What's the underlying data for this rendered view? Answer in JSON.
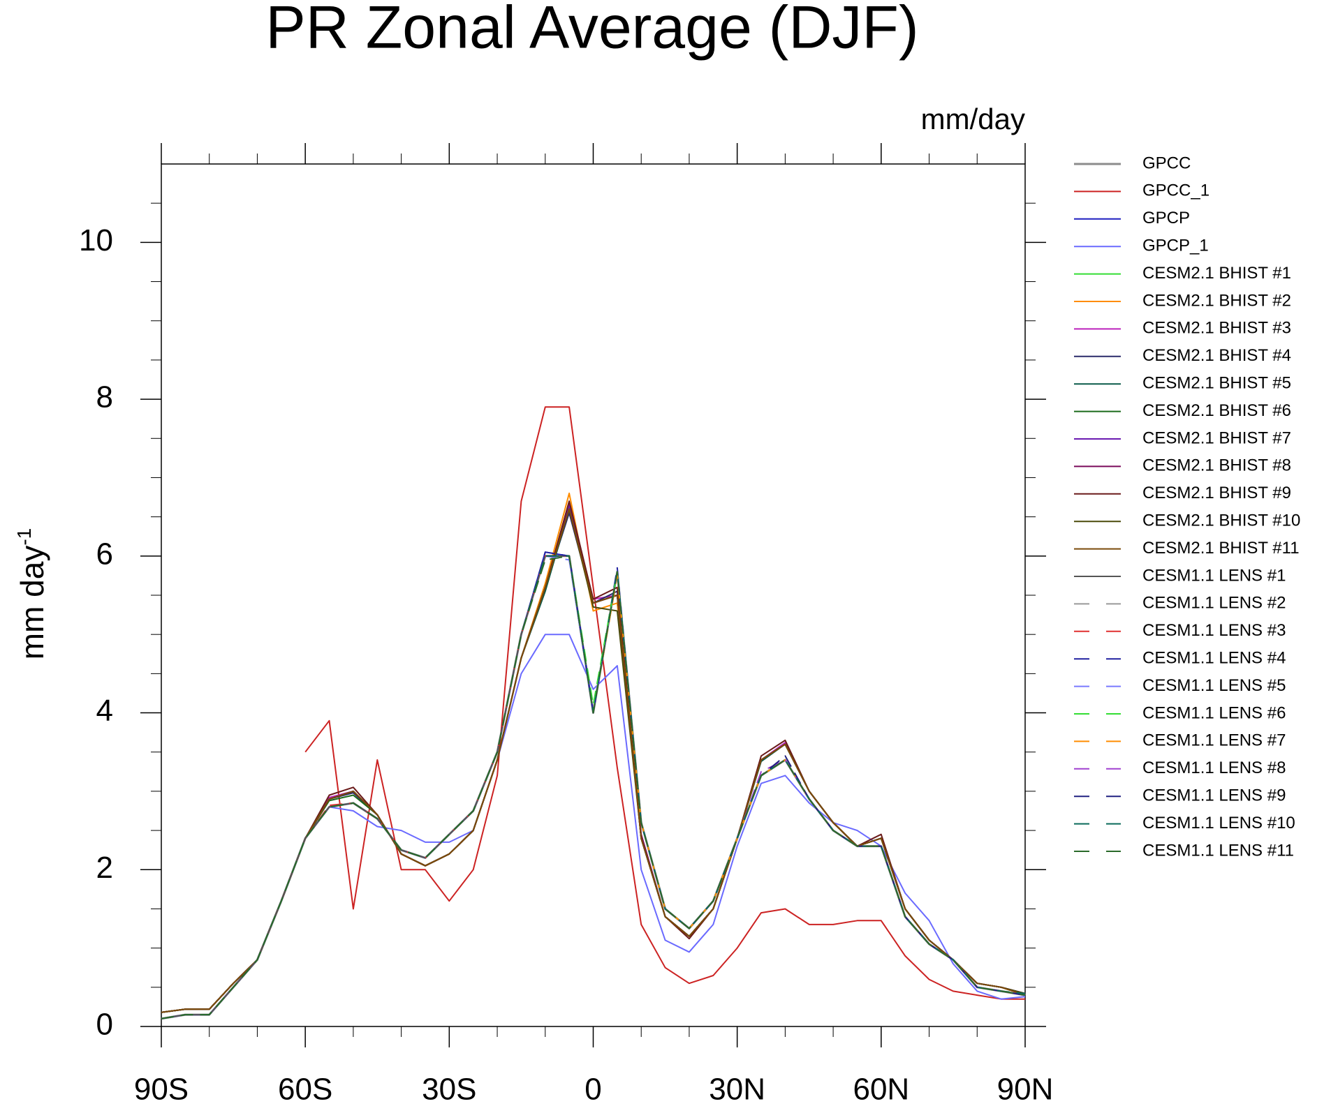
{
  "chart_data": {
    "type": "line",
    "title": "PR Zonal Average (DJF)",
    "units": "mm/day",
    "ylabel": "mm day",
    "ylabel_exponent": "-1",
    "x": [
      -90,
      -85,
      -80,
      -75,
      -70,
      -65,
      -60,
      -55,
      -50,
      -45,
      -40,
      -35,
      -30,
      -25,
      -20,
      -15,
      -10,
      -5,
      0,
      5,
      10,
      15,
      20,
      25,
      30,
      35,
      40,
      45,
      50,
      55,
      60,
      65,
      70,
      75,
      80,
      85,
      90
    ],
    "xlim": [
      -90,
      90
    ],
    "xticks": [
      {
        "value": -90,
        "label": "90S"
      },
      {
        "value": -60,
        "label": "60S"
      },
      {
        "value": -30,
        "label": "30S"
      },
      0,
      {
        "value": 30,
        "label": "30N"
      },
      {
        "value": 60,
        "label": "60N"
      },
      {
        "value": 90,
        "label": "90N"
      }
    ],
    "xminorticks": [
      -80,
      -70,
      -50,
      -40,
      -20,
      -10,
      10,
      20,
      40,
      50,
      70,
      80
    ],
    "ylim": [
      0,
      11
    ],
    "yticks": [
      0,
      2,
      4,
      6,
      8,
      10
    ],
    "yminorticks": [
      0.5,
      1,
      1.5,
      2.5,
      3,
      3.5,
      4.5,
      5,
      5.5,
      6.5,
      7,
      7.5,
      8.5,
      9,
      9.5,
      10.5
    ],
    "series": [
      {
        "name": "GPCC",
        "color": "#8c8c8c",
        "width": 3,
        "values": [
          0.1,
          0.15,
          0.15,
          0.5,
          0.85,
          1.6,
          2.4,
          2.8,
          2.85,
          2.65,
          2.25,
          2.15,
          2.45,
          2.75,
          3.5,
          5.0,
          6.0,
          6.0,
          4.0,
          5.8,
          2.6,
          1.5,
          1.25,
          1.6,
          2.4,
          3.2,
          3.4,
          2.9,
          2.5,
          2.3,
          2.3,
          1.4,
          1.05,
          0.85,
          0.5,
          0.45,
          0.4
        ]
      },
      {
        "name": "GPCC_1",
        "color": "#cc2222",
        "values": [
          null,
          null,
          null,
          null,
          null,
          null,
          3.5,
          3.9,
          1.5,
          3.4,
          2.0,
          2.0,
          1.6,
          2.0,
          3.2,
          6.7,
          7.9,
          7.9,
          5.6,
          3.3,
          1.3,
          0.75,
          0.55,
          0.65,
          1.0,
          1.45,
          1.5,
          1.3,
          1.3,
          1.35,
          1.35,
          0.9,
          0.6,
          0.45,
          0.4,
          0.35,
          0.35
        ]
      },
      {
        "name": "GPCP",
        "color": "#1f1fbf",
        "values": [
          0.1,
          0.15,
          0.15,
          0.5,
          0.85,
          1.6,
          2.4,
          2.8,
          2.85,
          2.65,
          2.25,
          2.15,
          2.45,
          2.75,
          3.5,
          5.0,
          6.05,
          6.0,
          4.0,
          5.8,
          2.6,
          1.5,
          1.25,
          1.6,
          2.4,
          3.2,
          3.4,
          2.9,
          2.5,
          2.3,
          2.3,
          1.4,
          1.05,
          0.85,
          0.5,
          0.45,
          0.4
        ]
      },
      {
        "name": "GPCP_1",
        "color": "#6a6aff",
        "values": [
          0.1,
          0.15,
          0.15,
          0.5,
          0.85,
          1.6,
          2.4,
          2.8,
          2.75,
          2.55,
          2.5,
          2.35,
          2.35,
          2.5,
          3.4,
          4.5,
          5.0,
          5.0,
          4.3,
          4.6,
          2.0,
          1.1,
          0.95,
          1.3,
          2.3,
          3.1,
          3.2,
          2.85,
          2.6,
          2.5,
          2.3,
          1.7,
          1.35,
          0.8,
          0.45,
          0.35,
          0.38
        ]
      },
      {
        "name": "CESM2.1 BHIST #1",
        "color": "#33dd33",
        "values": [
          0.18,
          0.22,
          0.22,
          0.55,
          0.85,
          1.6,
          2.4,
          2.9,
          3.0,
          2.7,
          2.2,
          2.05,
          2.2,
          2.5,
          3.4,
          4.7,
          5.6,
          6.6,
          5.4,
          5.5,
          2.4,
          1.4,
          1.15,
          1.5,
          2.4,
          3.4,
          3.6,
          3.0,
          2.6,
          2.3,
          2.4,
          1.5,
          1.1,
          0.85,
          0.55,
          0.5,
          0.42
        ]
      },
      {
        "name": "CESM2.1 BHIST #2",
        "color": "#ff8c00",
        "values": [
          0.18,
          0.22,
          0.22,
          0.55,
          0.85,
          1.6,
          2.4,
          2.9,
          3.0,
          2.7,
          2.2,
          2.05,
          2.2,
          2.5,
          3.4,
          4.7,
          5.65,
          6.8,
          5.3,
          5.4,
          2.4,
          1.4,
          1.15,
          1.5,
          2.4,
          3.4,
          3.6,
          3.0,
          2.6,
          2.3,
          2.4,
          1.5,
          1.1,
          0.85,
          0.55,
          0.5,
          0.4
        ]
      },
      {
        "name": "CESM2.1 BHIST #3",
        "color": "#bb22bb",
        "values": [
          0.18,
          0.22,
          0.22,
          0.55,
          0.85,
          1.6,
          2.4,
          2.92,
          3.0,
          2.7,
          2.2,
          2.05,
          2.2,
          2.5,
          3.4,
          4.7,
          5.6,
          6.6,
          5.45,
          5.5,
          2.4,
          1.4,
          1.15,
          1.5,
          2.4,
          3.4,
          3.62,
          3.0,
          2.6,
          2.3,
          2.4,
          1.5,
          1.1,
          0.85,
          0.55,
          0.5,
          0.42
        ]
      },
      {
        "name": "CESM2.1 BHIST #4",
        "color": "#2a2a6a",
        "values": [
          0.18,
          0.22,
          0.22,
          0.55,
          0.85,
          1.6,
          2.4,
          2.9,
          2.98,
          2.7,
          2.2,
          2.05,
          2.2,
          2.5,
          3.4,
          4.7,
          5.6,
          6.55,
          5.4,
          5.55,
          2.4,
          1.4,
          1.15,
          1.5,
          2.4,
          3.4,
          3.6,
          3.0,
          2.6,
          2.3,
          2.4,
          1.5,
          1.1,
          0.85,
          0.55,
          0.5,
          0.42
        ]
      },
      {
        "name": "CESM2.1 BHIST #5",
        "color": "#0a5a4a",
        "values": [
          0.18,
          0.22,
          0.22,
          0.55,
          0.85,
          1.6,
          2.4,
          2.9,
          3.0,
          2.7,
          2.2,
          2.05,
          2.2,
          2.5,
          3.4,
          4.7,
          5.55,
          6.6,
          5.4,
          5.5,
          2.4,
          1.4,
          1.15,
          1.5,
          2.4,
          3.38,
          3.6,
          3.0,
          2.6,
          2.3,
          2.4,
          1.5,
          1.1,
          0.85,
          0.55,
          0.5,
          0.42
        ]
      },
      {
        "name": "CESM2.1 BHIST #6",
        "color": "#1a6a1a",
        "values": [
          0.18,
          0.22,
          0.22,
          0.55,
          0.85,
          1.6,
          2.4,
          2.88,
          2.95,
          2.7,
          2.2,
          2.05,
          2.2,
          2.5,
          3.4,
          4.7,
          5.6,
          6.6,
          5.4,
          5.5,
          2.4,
          1.4,
          1.15,
          1.5,
          2.4,
          3.4,
          3.6,
          3.0,
          2.6,
          2.3,
          2.4,
          1.5,
          1.1,
          0.85,
          0.55,
          0.5,
          0.42
        ]
      },
      {
        "name": "CESM2.1 BHIST #7",
        "color": "#6a1ab0",
        "values": [
          0.18,
          0.22,
          0.22,
          0.55,
          0.85,
          1.6,
          2.4,
          2.9,
          3.0,
          2.7,
          2.2,
          2.05,
          2.2,
          2.5,
          3.4,
          4.7,
          5.6,
          6.65,
          5.4,
          5.5,
          2.4,
          1.4,
          1.15,
          1.5,
          2.4,
          3.4,
          3.6,
          3.0,
          2.6,
          2.3,
          2.4,
          1.5,
          1.1,
          0.85,
          0.55,
          0.5,
          0.42
        ]
      },
      {
        "name": "CESM2.1 BHIST #8",
        "color": "#7a0a5a",
        "values": [
          0.18,
          0.22,
          0.22,
          0.55,
          0.85,
          1.6,
          2.4,
          2.9,
          3.0,
          2.7,
          2.2,
          2.05,
          2.2,
          2.5,
          3.4,
          4.7,
          5.6,
          6.6,
          5.4,
          5.5,
          2.45,
          1.4,
          1.15,
          1.5,
          2.4,
          3.4,
          3.6,
          3.0,
          2.6,
          2.3,
          2.4,
          1.5,
          1.1,
          0.85,
          0.55,
          0.5,
          0.42
        ]
      },
      {
        "name": "CESM2.1 BHIST #9",
        "color": "#6a1a1a",
        "values": [
          0.18,
          0.22,
          0.22,
          0.55,
          0.85,
          1.6,
          2.4,
          2.95,
          3.05,
          2.7,
          2.2,
          2.05,
          2.2,
          2.5,
          3.4,
          4.7,
          5.6,
          6.7,
          5.45,
          5.6,
          2.4,
          1.4,
          1.12,
          1.5,
          2.4,
          3.45,
          3.65,
          3.0,
          2.6,
          2.3,
          2.45,
          1.5,
          1.1,
          0.85,
          0.55,
          0.5,
          0.42
        ]
      },
      {
        "name": "CESM2.1 BHIST #10",
        "color": "#4a4a0a",
        "values": [
          0.18,
          0.22,
          0.22,
          0.55,
          0.85,
          1.6,
          2.4,
          2.9,
          3.0,
          2.7,
          2.2,
          2.05,
          2.2,
          2.5,
          3.4,
          4.7,
          5.6,
          6.6,
          5.35,
          5.3,
          2.4,
          1.4,
          1.15,
          1.5,
          2.4,
          3.4,
          3.6,
          3.0,
          2.6,
          2.3,
          2.4,
          1.5,
          1.1,
          0.85,
          0.55,
          0.5,
          0.42
        ]
      },
      {
        "name": "CESM2.1 BHIST #11",
        "color": "#7a4a0a",
        "values": [
          0.18,
          0.22,
          0.22,
          0.55,
          0.85,
          1.6,
          2.4,
          2.9,
          3.0,
          2.7,
          2.2,
          2.05,
          2.2,
          2.5,
          3.4,
          4.7,
          5.6,
          6.6,
          5.4,
          5.5,
          2.4,
          1.4,
          1.15,
          1.5,
          2.4,
          3.4,
          3.6,
          3.0,
          2.6,
          2.3,
          2.4,
          1.5,
          1.1,
          0.85,
          0.55,
          0.5,
          0.4
        ]
      },
      {
        "name": "CESM1.1 LENS #1",
        "color": "#555555",
        "values": [
          0.1,
          0.15,
          0.15,
          0.5,
          0.85,
          1.6,
          2.4,
          2.8,
          2.85,
          2.65,
          2.25,
          2.15,
          2.45,
          2.75,
          3.5,
          5.0,
          6.0,
          6.0,
          4.0,
          5.8,
          2.6,
          1.5,
          1.25,
          1.6,
          2.4,
          3.2,
          3.4,
          2.9,
          2.5,
          2.3,
          2.3,
          1.4,
          1.05,
          0.85,
          0.5,
          0.45,
          0.4
        ]
      },
      {
        "name": "CESM1.1 LENS #2",
        "color": "#999999",
        "dash": true,
        "values": [
          0.1,
          0.15,
          0.15,
          0.5,
          0.85,
          1.6,
          2.4,
          2.8,
          2.85,
          2.65,
          2.25,
          2.15,
          2.45,
          2.75,
          3.5,
          5.0,
          6.0,
          6.0,
          4.05,
          5.8,
          2.6,
          1.5,
          1.25,
          1.6,
          2.4,
          3.2,
          3.4,
          2.9,
          2.5,
          2.3,
          2.3,
          1.4,
          1.05,
          0.85,
          0.5,
          0.45,
          0.4
        ]
      },
      {
        "name": "CESM1.1 LENS #3",
        "color": "#e03030",
        "dash": true,
        "values": [
          0.1,
          0.15,
          0.15,
          0.5,
          0.85,
          1.6,
          2.4,
          2.82,
          2.85,
          2.65,
          2.25,
          2.15,
          2.45,
          2.75,
          3.5,
          5.0,
          6.0,
          6.0,
          4.0,
          5.8,
          2.6,
          1.5,
          1.25,
          1.6,
          2.4,
          3.2,
          3.4,
          2.9,
          2.5,
          2.3,
          2.3,
          1.4,
          1.05,
          0.85,
          0.5,
          0.45,
          0.4
        ]
      },
      {
        "name": "CESM1.1 LENS #4",
        "color": "#2020a0",
        "dash": true,
        "values": [
          0.1,
          0.15,
          0.15,
          0.5,
          0.85,
          1.6,
          2.4,
          2.8,
          2.85,
          2.65,
          2.25,
          2.15,
          2.45,
          2.75,
          3.5,
          5.0,
          6.05,
          6.0,
          4.0,
          5.85,
          2.6,
          1.5,
          1.25,
          1.6,
          2.4,
          3.2,
          3.4,
          2.9,
          2.5,
          2.3,
          2.3,
          1.4,
          1.05,
          0.85,
          0.5,
          0.45,
          0.4
        ]
      },
      {
        "name": "CESM1.1 LENS #5",
        "color": "#7a7aff",
        "dash": true,
        "values": [
          0.1,
          0.15,
          0.15,
          0.5,
          0.85,
          1.6,
          2.4,
          2.8,
          2.85,
          2.65,
          2.25,
          2.15,
          2.45,
          2.75,
          3.5,
          5.0,
          6.0,
          5.95,
          4.0,
          5.8,
          2.6,
          1.5,
          1.25,
          1.6,
          2.4,
          3.2,
          3.4,
          2.9,
          2.5,
          2.3,
          2.3,
          1.4,
          1.05,
          0.85,
          0.5,
          0.45,
          0.4
        ]
      },
      {
        "name": "CESM1.1 LENS #6",
        "color": "#33dd33",
        "dash": true,
        "values": [
          0.1,
          0.15,
          0.15,
          0.5,
          0.85,
          1.6,
          2.4,
          2.8,
          2.85,
          2.65,
          2.25,
          2.15,
          2.45,
          2.75,
          3.5,
          5.0,
          6.0,
          6.0,
          4.1,
          5.8,
          2.6,
          1.5,
          1.25,
          1.6,
          2.4,
          3.2,
          3.4,
          2.9,
          2.5,
          2.3,
          2.3,
          1.4,
          1.05,
          0.85,
          0.5,
          0.45,
          0.4
        ]
      },
      {
        "name": "CESM1.1 LENS #7",
        "color": "#ff8c00",
        "dash": true,
        "values": [
          0.1,
          0.15,
          0.15,
          0.5,
          0.85,
          1.6,
          2.4,
          2.8,
          2.85,
          2.65,
          2.25,
          2.15,
          2.45,
          2.75,
          3.5,
          5.0,
          6.0,
          6.0,
          4.0,
          5.75,
          2.6,
          1.5,
          1.25,
          1.6,
          2.4,
          3.2,
          3.4,
          2.9,
          2.5,
          2.3,
          2.3,
          1.4,
          1.05,
          0.85,
          0.5,
          0.45,
          0.4
        ]
      },
      {
        "name": "CESM1.1 LENS #8",
        "color": "#a040d0",
        "dash": true,
        "values": [
          0.1,
          0.15,
          0.15,
          0.5,
          0.85,
          1.6,
          2.4,
          2.8,
          2.85,
          2.65,
          2.25,
          2.15,
          2.45,
          2.75,
          3.5,
          5.0,
          6.0,
          6.0,
          4.0,
          5.8,
          2.6,
          1.5,
          1.25,
          1.6,
          2.4,
          3.25,
          3.4,
          2.9,
          2.5,
          2.3,
          2.3,
          1.4,
          1.05,
          0.85,
          0.5,
          0.45,
          0.4
        ]
      },
      {
        "name": "CESM1.1 LENS #9",
        "color": "#202080",
        "dash": true,
        "values": [
          0.1,
          0.15,
          0.15,
          0.5,
          0.85,
          1.6,
          2.4,
          2.8,
          2.85,
          2.65,
          2.25,
          2.15,
          2.45,
          2.75,
          3.5,
          5.0,
          6.0,
          6.0,
          4.0,
          5.8,
          2.6,
          1.5,
          1.25,
          1.6,
          2.4,
          3.2,
          3.45,
          2.9,
          2.5,
          2.3,
          2.3,
          1.4,
          1.05,
          0.85,
          0.5,
          0.45,
          0.4
        ]
      },
      {
        "name": "CESM1.1 LENS #10",
        "color": "#0a6a5a",
        "dash": true,
        "values": [
          0.1,
          0.15,
          0.15,
          0.5,
          0.85,
          1.6,
          2.4,
          2.8,
          2.85,
          2.65,
          2.25,
          2.15,
          2.45,
          2.75,
          3.5,
          5.0,
          6.0,
          6.0,
          4.0,
          5.8,
          2.6,
          1.5,
          1.25,
          1.6,
          2.4,
          3.2,
          3.4,
          2.9,
          2.5,
          2.3,
          2.3,
          1.4,
          1.05,
          0.85,
          0.5,
          0.45,
          0.42
        ]
      },
      {
        "name": "CESM1.1 LENS #11",
        "color": "#2a6a2a",
        "dash": true,
        "values": [
          0.1,
          0.15,
          0.15,
          0.5,
          0.85,
          1.6,
          2.4,
          2.8,
          2.85,
          2.65,
          2.25,
          2.15,
          2.45,
          2.75,
          3.5,
          5.0,
          5.95,
          6.0,
          4.0,
          5.8,
          2.6,
          1.5,
          1.25,
          1.6,
          2.4,
          3.2,
          3.4,
          2.9,
          2.5,
          2.3,
          2.3,
          1.4,
          1.05,
          0.85,
          0.5,
          0.45,
          0.4
        ]
      }
    ]
  }
}
